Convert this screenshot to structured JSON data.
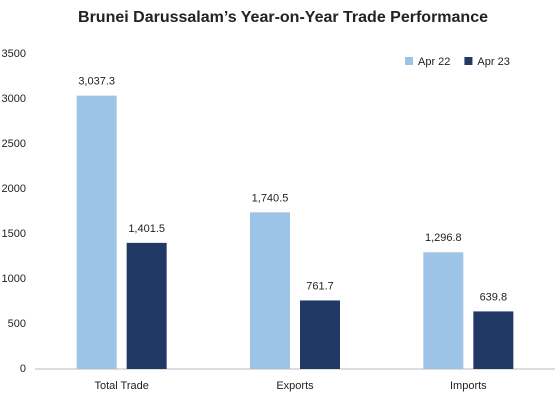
{
  "chart_data": {
    "type": "bar",
    "title": "Brunei Darussalam’s Year-on-Year Trade Performance",
    "categories": [
      "Total Trade",
      "Exports",
      "Imports"
    ],
    "series": [
      {
        "name": "Apr 22",
        "color": "#9dc3e6",
        "values": [
          3037.3,
          1740.5,
          1296.8
        ],
        "value_labels": [
          "3,037.3",
          "1,740.5",
          "1,296.8"
        ]
      },
      {
        "name": "Apr 23",
        "color": "#1f3864",
        "values": [
          1401.5,
          761.7,
          639.8
        ],
        "value_labels": [
          "1,401.5",
          "761.7",
          "639.8"
        ]
      }
    ],
    "ylim": [
      0,
      3500
    ],
    "yticks": [
      0,
      500,
      1000,
      1500,
      2000,
      2500,
      3000,
      3500
    ],
    "grid": false,
    "legend": "top-right"
  }
}
